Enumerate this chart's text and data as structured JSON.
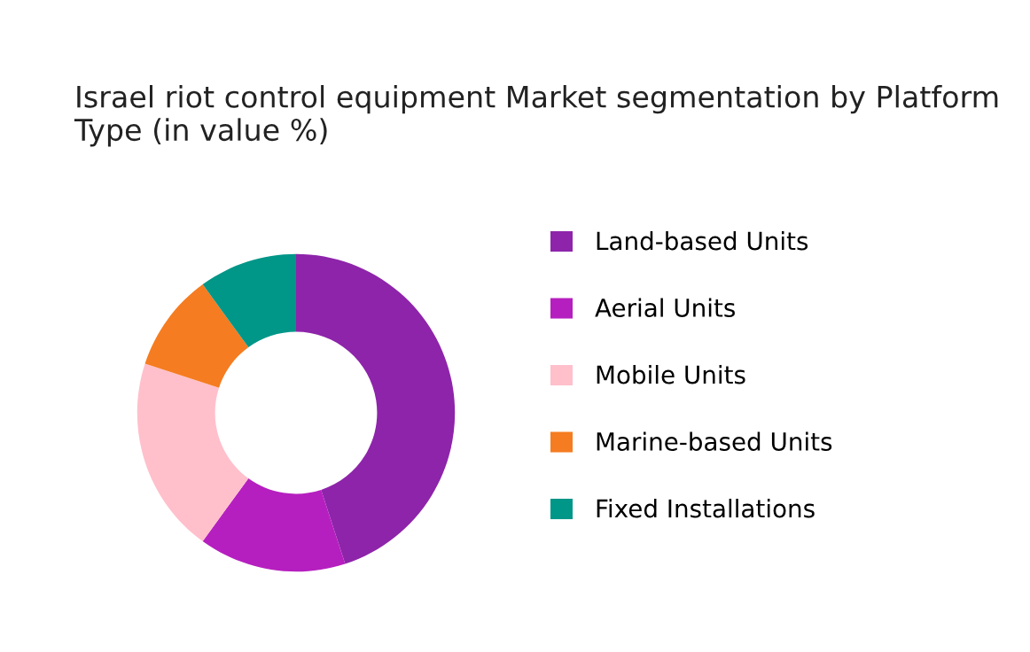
{
  "chart_data": {
    "type": "donut",
    "title": "Israel riot control equipment Market segmentation by Platform Type (in value %)",
    "categories": [
      "Land-based Units",
      "Aerial Units",
      "Mobile Units",
      "Marine-based Units",
      "Fixed Installations"
    ],
    "values": [
      45,
      15,
      20,
      10,
      10
    ],
    "colors": [
      "#8e24aa",
      "#b61fbf",
      "#ffc0cb",
      "#f57c20",
      "#009688"
    ],
    "legend": "right"
  }
}
